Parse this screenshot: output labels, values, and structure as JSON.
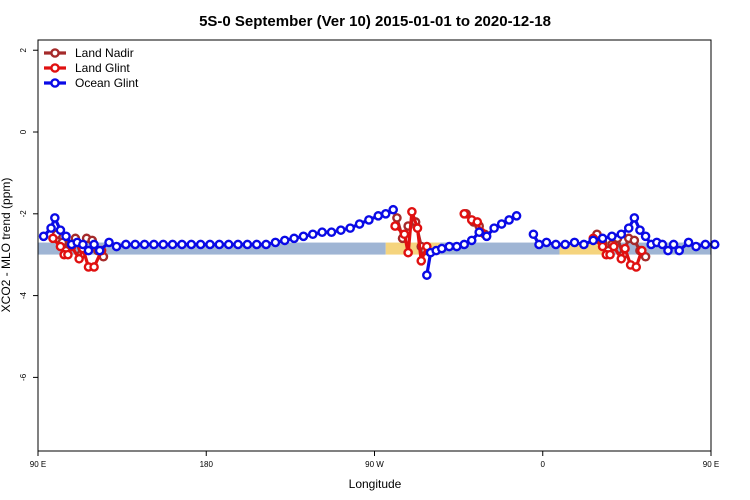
{
  "chart_data": {
    "type": "line",
    "title": "5S-0 September (Ver 10)   2015-01-01 to 2020-12-18",
    "xlabel": "Longitude",
    "ylabel": "XCO2 - MLO trend (ppm)",
    "xlim": [
      90,
      450
    ],
    "ylim": [
      -7.8,
      2.25
    ],
    "x_ticks": [
      {
        "value": 90,
        "label": "90 E"
      },
      {
        "value": 180,
        "label": "180"
      },
      {
        "value": 270,
        "label": "90 W"
      },
      {
        "value": 360,
        "label": "0"
      },
      {
        "value": 450,
        "label": "90 E"
      },
      {
        "value": 540,
        "label": "180"
      }
    ],
    "y_ticks": [
      {
        "value": 2,
        "label": "2"
      },
      {
        "value": 0,
        "label": "0"
      },
      {
        "value": -2,
        "label": "-2"
      },
      {
        "value": -4,
        "label": "-4"
      },
      {
        "value": -6,
        "label": "-6"
      }
    ],
    "band": {
      "y": -2.85,
      "segments": [
        {
          "x0": 90,
          "x1": 276,
          "kind": "ocean"
        },
        {
          "x0": 276,
          "x1": 305,
          "kind": "land"
        },
        {
          "x0": 305,
          "x1": 369,
          "kind": "ocean"
        },
        {
          "x0": 369,
          "x1": 398,
          "kind": "land"
        },
        {
          "x0": 398,
          "x1": 453,
          "kind": "ocean"
        }
      ],
      "colors": {
        "ocean": "#9fb5d4",
        "land": "#f5d47e"
      }
    },
    "legend_position": "top-left",
    "series": [
      {
        "name": "Land Nadir",
        "color": "#a52a2a",
        "segments": [
          [
            [
              100,
              -2.5
            ],
            [
              103,
              -2.7
            ],
            [
              105,
              -2.9
            ],
            [
              107,
              -2.75
            ],
            [
              110,
              -2.6
            ],
            [
              113,
              -3.0
            ],
            [
              116,
              -2.6
            ],
            [
              119,
              -2.65
            ],
            [
              122,
              -2.9
            ],
            [
              125,
              -3.05
            ]
          ],
          [
            [
              282,
              -2.1
            ],
            [
              285,
              -2.6
            ],
            [
              288,
              -2.3
            ],
            [
              292,
              -2.2
            ],
            [
              295,
              -2.8
            ],
            [
              297,
              -2.9
            ]
          ],
          [
            [
              319,
              -2.0
            ],
            [
              323,
              -2.2
            ],
            [
              326,
              -2.3
            ],
            [
              329,
              -2.5
            ]
          ],
          [
            [
              389,
              -2.5
            ],
            [
              392,
              -2.7
            ],
            [
              395,
              -2.9
            ],
            [
              397,
              -2.75
            ],
            [
              400,
              -2.6
            ],
            [
              403,
              -3.0
            ],
            [
              406,
              -2.6
            ],
            [
              409,
              -2.65
            ],
            [
              412,
              -2.9
            ],
            [
              415,
              -3.05
            ]
          ]
        ]
      },
      {
        "name": "Land Glint",
        "color": "#e01010",
        "segments": [
          [
            [
              98,
              -2.6
            ],
            [
              102,
              -2.8
            ],
            [
              104,
              -3.0
            ],
            [
              106,
              -3.0
            ],
            [
              108,
              -2.8
            ],
            [
              112,
              -3.1
            ],
            [
              114,
              -2.85
            ],
            [
              117,
              -3.3
            ],
            [
              120,
              -3.3
            ],
            [
              124,
              -2.9
            ]
          ],
          [
            [
              281,
              -2.3
            ],
            [
              286,
              -2.5
            ],
            [
              288,
              -2.95
            ],
            [
              290,
              -1.95
            ],
            [
              293,
              -2.35
            ],
            [
              295,
              -3.15
            ],
            [
              298,
              -2.8
            ]
          ],
          [
            [
              318,
              -2.0
            ],
            [
              322,
              -2.15
            ],
            [
              325,
              -2.2
            ],
            [
              327,
              -2.45
            ]
          ],
          [
            [
              387,
              -2.6
            ],
            [
              392,
              -2.8
            ],
            [
              394,
              -3.0
            ],
            [
              396,
              -3.0
            ],
            [
              398,
              -2.8
            ],
            [
              402,
              -3.1
            ],
            [
              404,
              -2.85
            ],
            [
              407,
              -3.25
            ],
            [
              410,
              -3.3
            ],
            [
              413,
              -2.9
            ]
          ]
        ]
      },
      {
        "name": "Ocean Glint",
        "color": "#0a0ae6",
        "segments": [
          [
            [
              93,
              -2.55
            ],
            [
              97,
              -2.35
            ],
            [
              99,
              -2.1
            ],
            [
              102,
              -2.4
            ],
            [
              105,
              -2.55
            ],
            [
              108,
              -2.75
            ],
            [
              111,
              -2.7
            ],
            [
              114,
              -2.75
            ],
            [
              117,
              -2.9
            ],
            [
              120,
              -2.75
            ],
            [
              123,
              -2.9
            ],
            [
              128,
              -2.7
            ],
            [
              132,
              -2.8
            ],
            [
              137,
              -2.75
            ],
            [
              142,
              -2.75
            ],
            [
              147,
              -2.75
            ],
            [
              152,
              -2.75
            ],
            [
              157,
              -2.75
            ],
            [
              162,
              -2.75
            ],
            [
              167,
              -2.75
            ],
            [
              172,
              -2.75
            ],
            [
              177,
              -2.75
            ],
            [
              182,
              -2.75
            ],
            [
              187,
              -2.75
            ],
            [
              192,
              -2.75
            ],
            [
              197,
              -2.75
            ],
            [
              202,
              -2.75
            ],
            [
              207,
              -2.75
            ],
            [
              212,
              -2.75
            ],
            [
              217,
              -2.7
            ],
            [
              222,
              -2.65
            ],
            [
              227,
              -2.6
            ],
            [
              232,
              -2.55
            ],
            [
              237,
              -2.5
            ],
            [
              242,
              -2.45
            ],
            [
              247,
              -2.45
            ],
            [
              252,
              -2.4
            ],
            [
              257,
              -2.35
            ],
            [
              262,
              -2.25
            ],
            [
              267,
              -2.15
            ],
            [
              272,
              -2.05
            ],
            [
              276,
              -2.0
            ],
            [
              280,
              -1.9
            ]
          ],
          [
            [
              298,
              -3.5
            ],
            [
              300,
              -2.95
            ],
            [
              303,
              -2.9
            ],
            [
              306,
              -2.85
            ],
            [
              310,
              -2.8
            ],
            [
              314,
              -2.8
            ],
            [
              318,
              -2.75
            ],
            [
              322,
              -2.65
            ],
            [
              326,
              -2.45
            ],
            [
              330,
              -2.55
            ],
            [
              334,
              -2.35
            ],
            [
              338,
              -2.25
            ],
            [
              342,
              -2.15
            ],
            [
              346,
              -2.05
            ]
          ],
          [
            [
              355,
              -2.5
            ],
            [
              358,
              -2.75
            ],
            [
              362,
              -2.7
            ],
            [
              367,
              -2.75
            ],
            [
              372,
              -2.75
            ],
            [
              377,
              -2.7
            ],
            [
              382,
              -2.75
            ],
            [
              387,
              -2.65
            ],
            [
              392,
              -2.6
            ],
            [
              397,
              -2.55
            ],
            [
              402,
              -2.5
            ],
            [
              406,
              -2.35
            ],
            [
              409,
              -2.1
            ],
            [
              412,
              -2.4
            ],
            [
              415,
              -2.55
            ],
            [
              418,
              -2.75
            ],
            [
              421,
              -2.7
            ],
            [
              424,
              -2.75
            ],
            [
              427,
              -2.9
            ],
            [
              430,
              -2.75
            ],
            [
              433,
              -2.9
            ],
            [
              438,
              -2.7
            ],
            [
              442,
              -2.8
            ],
            [
              447,
              -2.75
            ],
            [
              452,
              -2.75
            ]
          ]
        ]
      }
    ]
  }
}
